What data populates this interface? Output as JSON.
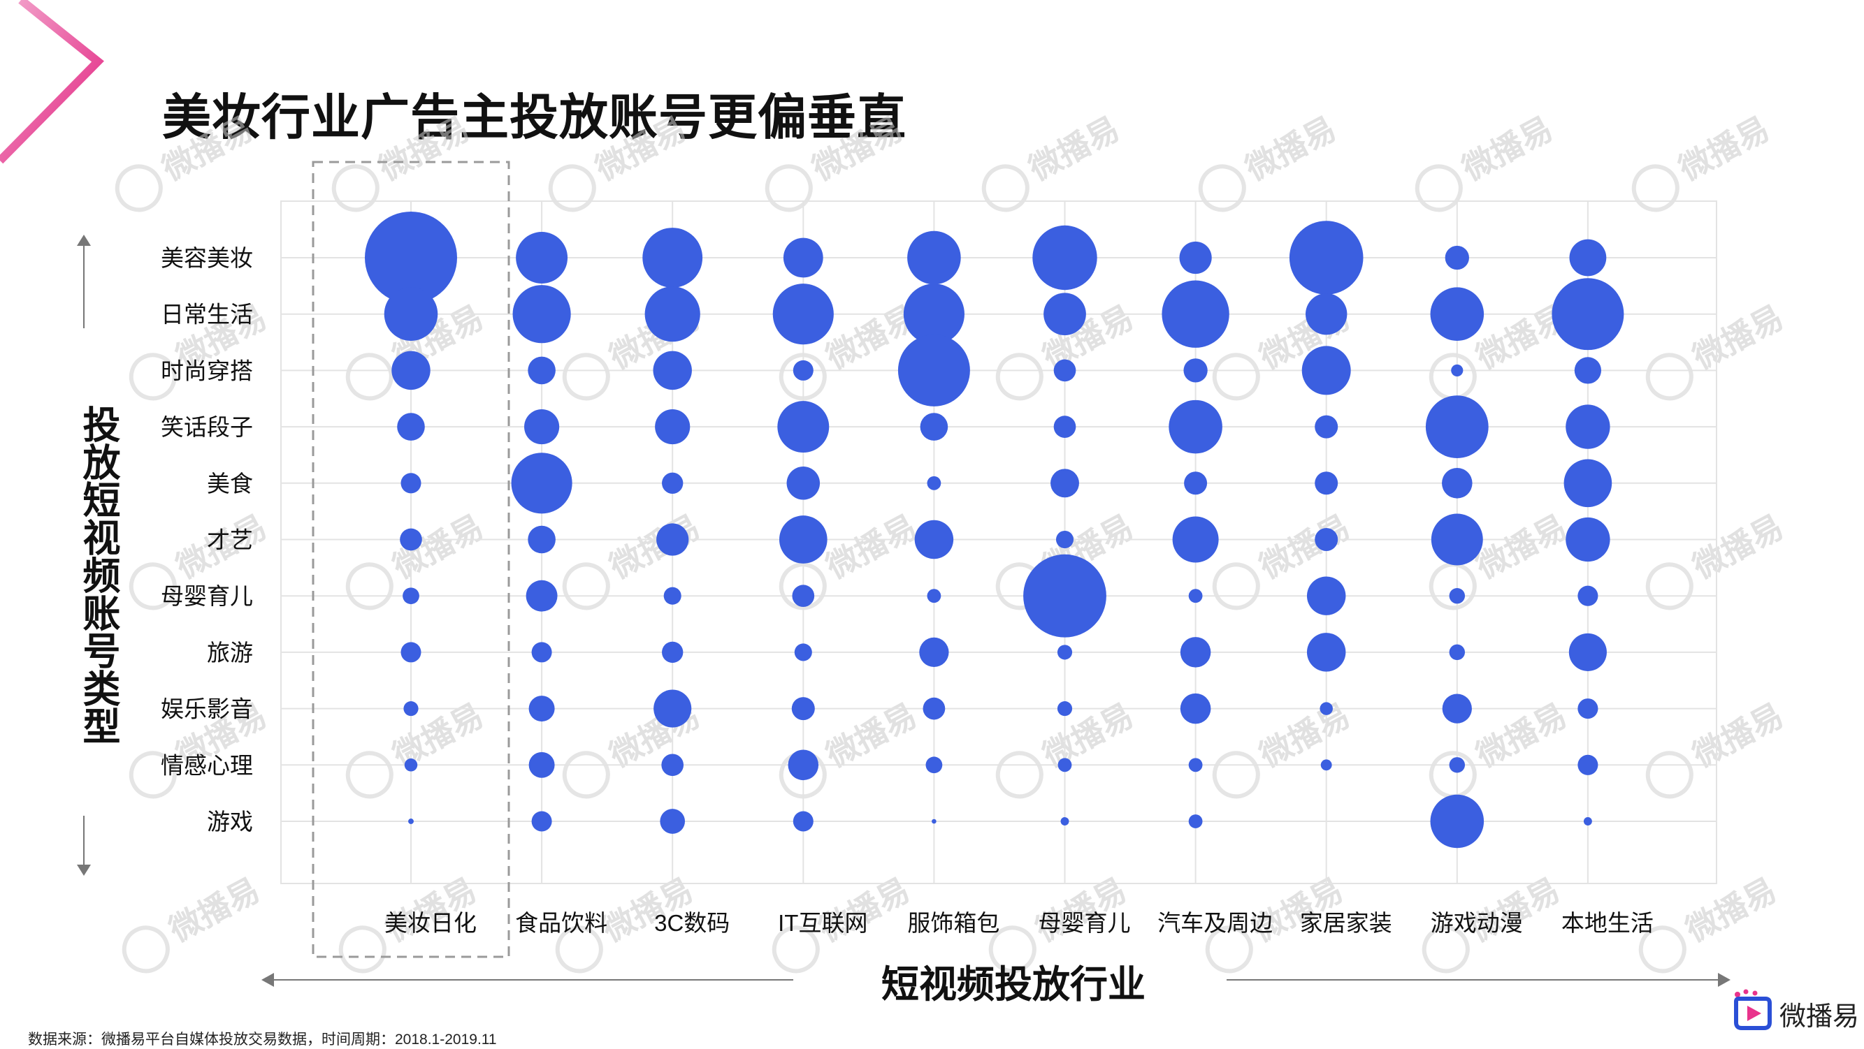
{
  "title": "美妆行业广告主投放账号更偏垂直",
  "watermark_text": "微播易",
  "colors": {
    "bubble": "#3b5fe0",
    "grid": "#e3e3e3",
    "highlight_box": "#9a9a9a",
    "accent_pink": "#e9338c",
    "accent_blue": "#2a4fd6"
  },
  "source_text": "数据来源：微播易平台自媒体投放交易数据，时间周期：2018.1-2019.11",
  "logo_text": "微播易",
  "chart_data": {
    "type": "bubble",
    "xlabel": "短视频投放行业",
    "ylabel": "投放短视频账号类型",
    "x_categories": [
      "美妆日化",
      "食品饮料",
      "3C数码",
      "IT互联网",
      "服饰箱包",
      "母婴育儿",
      "汽车及周边",
      "家居家装",
      "游戏动漫",
      "本地生活"
    ],
    "y_categories": [
      "美容美妆",
      "日常生活",
      "时尚穿搭",
      "笑话段子",
      "美食",
      "才艺",
      "母婴育儿",
      "旅游",
      "娱乐影音",
      "情感心理",
      "游戏"
    ],
    "highlight_category": "美妆日化",
    "grid": true,
    "size_unit": "relative",
    "sizes": [
      [
        10.0,
        5.8,
        4.2,
        3.0,
        2.2,
        2.4,
        1.8,
        2.2,
        1.6,
        1.4,
        0.6
      ],
      [
        5.6,
        6.3,
        3.0,
        3.8,
        6.6,
        3.0,
        3.4,
        2.2,
        2.8,
        2.8,
        2.2
      ],
      [
        6.5,
        6.0,
        4.2,
        3.8,
        2.3,
        3.5,
        1.9,
        2.3,
        4.1,
        2.4,
        2.7
      ],
      [
        4.3,
        6.6,
        2.2,
        5.6,
        3.6,
        5.2,
        2.4,
        1.9,
        2.5,
        3.3,
        2.2
      ],
      [
        5.8,
        6.6,
        7.8,
        3.0,
        1.5,
        4.2,
        1.5,
        3.2,
        2.4,
        1.8,
        0.5
      ],
      [
        7.0,
        4.6,
        2.4,
        2.4,
        3.1,
        1.9,
        9.0,
        1.6,
        1.6,
        1.5,
        0.9
      ],
      [
        3.5,
        7.3,
        2.6,
        5.8,
        2.5,
        5.0,
        1.5,
        3.3,
        3.3,
        1.5,
        1.5
      ],
      [
        8.0,
        4.5,
        5.3,
        2.5,
        2.5,
        2.5,
        4.2,
        4.2,
        1.4,
        1.2,
        0.0
      ],
      [
        2.6,
        5.8,
        1.3,
        6.8,
        3.3,
        5.6,
        1.7,
        1.7,
        3.2,
        1.7,
        5.8
      ],
      [
        4.0,
        7.8,
        2.9,
        4.8,
        5.2,
        4.8,
        2.2,
        4.1,
        2.2,
        2.2,
        0.9
      ]
    ]
  }
}
